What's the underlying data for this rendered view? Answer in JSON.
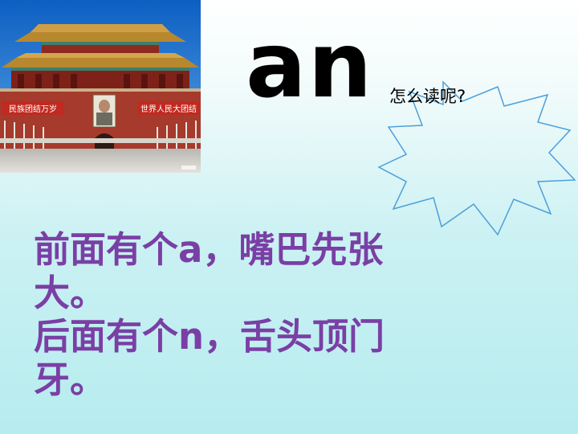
{
  "photo": {
    "banner_left": "民族团结万岁",
    "banner_right": "世界人民大团结"
  },
  "title": "an",
  "question": "怎么读呢?",
  "lines": [
    "前面有个a，嘴巴先张",
    "大。",
    "后面有个n，舌头顶门",
    "牙。"
  ],
  "colors": {
    "body_text": "#7a3fa5",
    "title": "#000000"
  }
}
